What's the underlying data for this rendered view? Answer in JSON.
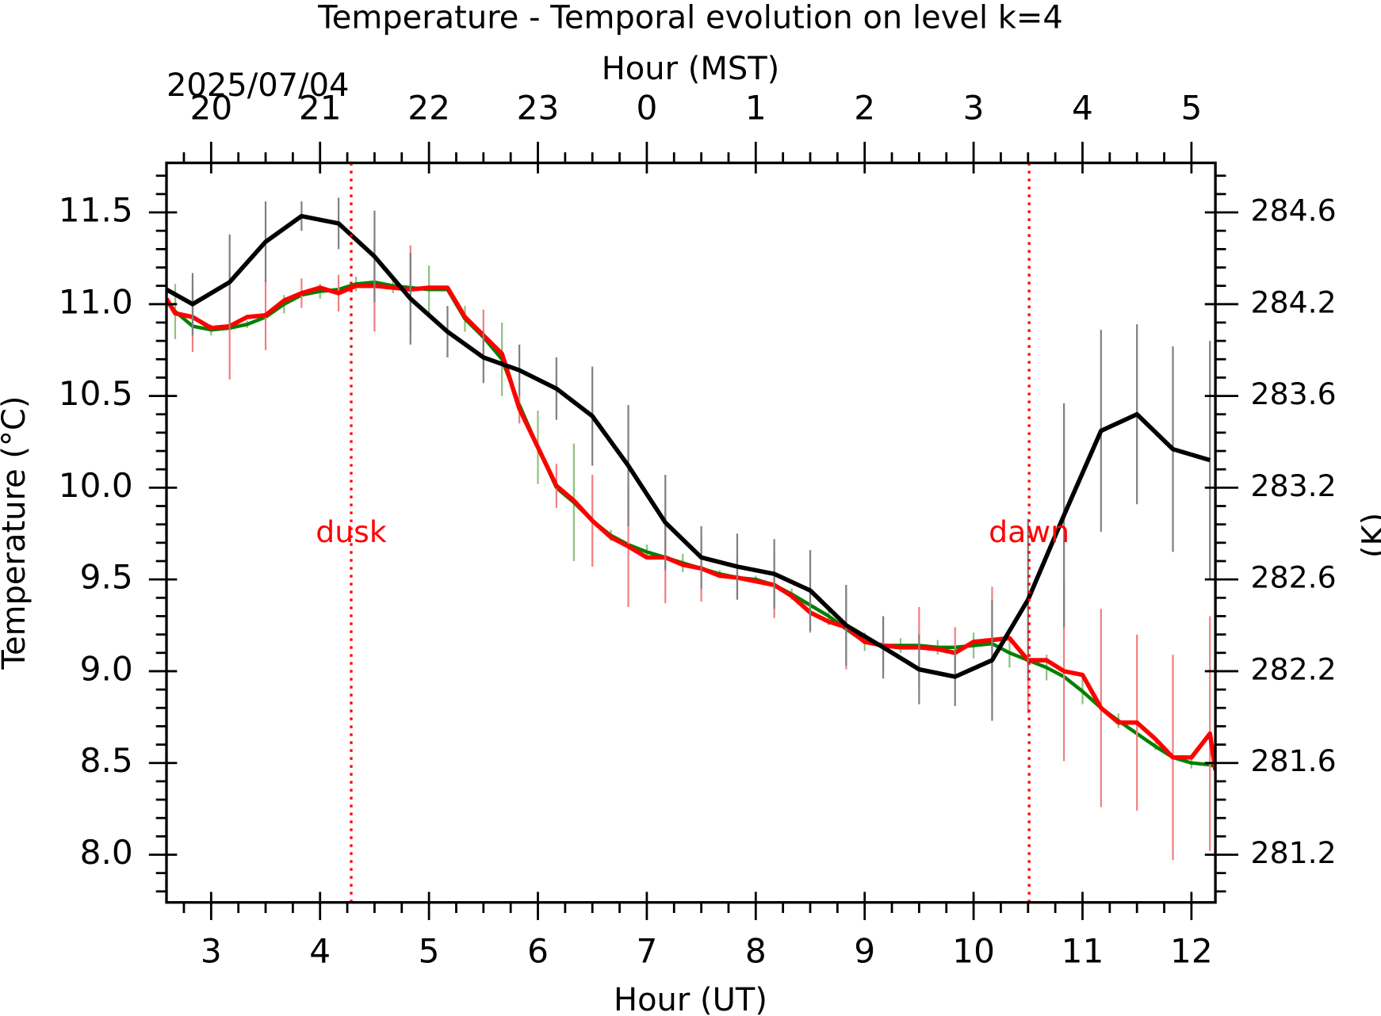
{
  "chart_data": {
    "type": "line",
    "title": "Temperature - Temporal evolution on level k=4",
    "xlabel": "Hour (UT)",
    "x2label": "Hour (MST)",
    "x2date": "2025/07/04",
    "ylabel": "Temperature (°C)",
    "y2label": "(K)",
    "xlim": [
      2.59,
      12.22
    ],
    "xticks": [
      3,
      4,
      5,
      6,
      7,
      8,
      9,
      10,
      11,
      12
    ],
    "xminorticks": [
      2.75,
      3.25,
      3.5,
      3.75,
      4.25,
      4.5,
      4.75,
      5.25,
      5.5,
      5.75,
      6.25,
      6.5,
      6.75,
      7.25,
      7.5,
      7.75,
      8.25,
      8.5,
      8.75,
      9.25,
      9.5,
      9.75,
      10.25,
      10.5,
      10.75,
      11.25,
      11.5,
      11.75
    ],
    "x2lim": [
      19.59,
      29.22
    ],
    "x2ticks": [
      20,
      21,
      22,
      23,
      {
        "value": 24,
        "label": "0"
      },
      {
        "value": 25,
        "label": "1"
      },
      {
        "value": 26,
        "label": "2"
      },
      {
        "value": 27,
        "label": "3"
      },
      {
        "value": 28,
        "label": "4"
      },
      {
        "value": 29,
        "label": "5"
      }
    ],
    "ylim": [
      7.74,
      11.77
    ],
    "yticks": [
      {
        "value": 8,
        "label": "8.0"
      },
      8.5,
      {
        "value": 9,
        "label": "9.0"
      },
      9.5,
      {
        "value": 10,
        "label": "10.0"
      },
      10.5,
      {
        "value": 11,
        "label": "11.0"
      },
      11.5
    ],
    "yminorticks": [
      7.8,
      7.9,
      8.1,
      8.2,
      8.3,
      8.4,
      8.6,
      8.7,
      8.8,
      8.9,
      9.1,
      9.2,
      9.3,
      9.4,
      9.6,
      9.7,
      9.8,
      9.9,
      10.1,
      10.2,
      10.3,
      10.4,
      10.6,
      10.7,
      10.8,
      10.9,
      11.1,
      11.2,
      11.3,
      11.4,
      11.6,
      11.7
    ],
    "y2lim": [
      280.89,
      284.92
    ],
    "y2ticks": [
      {
        "value": 281.15,
        "label": "281.2"
      },
      {
        "value": 281.65,
        "label": "281.6"
      },
      {
        "value": 282.15,
        "label": "282.2"
      },
      {
        "value": 282.65,
        "label": "282.6"
      },
      {
        "value": 283.15,
        "label": "283.2"
      },
      {
        "value": 283.65,
        "label": "283.6"
      },
      {
        "value": 284.15,
        "label": "284.2"
      },
      {
        "value": 284.65,
        "label": "284.6"
      }
    ],
    "annotations": [
      {
        "text": "dusk",
        "x": 4.286,
        "y": 9.75,
        "color": "#ff0000"
      },
      {
        "text": "dawn",
        "x": 10.51,
        "y": 9.75,
        "color": "#ff0000"
      }
    ],
    "series": [
      {
        "color": "#008000",
        "error_color": "#90c080",
        "width": 4,
        "x": [
          2.59,
          2.67,
          2.83,
          3.0,
          3.17,
          3.33,
          3.5,
          3.67,
          3.83,
          4.0,
          4.17,
          4.33,
          4.5,
          4.67,
          4.83,
          5.0,
          5.17,
          5.33,
          5.5,
          5.67,
          5.83,
          6.0,
          6.17,
          6.33,
          6.5,
          6.67,
          6.83,
          7.0,
          7.17,
          7.33,
          7.5,
          7.67,
          7.83,
          8.0,
          8.17,
          8.33,
          8.5,
          8.67,
          8.83,
          9.0,
          9.17,
          9.33,
          9.5,
          9.67,
          9.83,
          10.0,
          10.17,
          10.33,
          10.5,
          10.67,
          10.83,
          11.0,
          11.17,
          11.33,
          11.5,
          11.67,
          11.83,
          12.0,
          12.17,
          12.22
        ],
        "values": [
          11.02,
          10.96,
          10.88,
          10.86,
          10.87,
          10.89,
          10.93,
          11.0,
          11.05,
          11.07,
          11.08,
          11.11,
          11.12,
          11.1,
          11.09,
          11.08,
          11.08,
          10.92,
          10.82,
          10.7,
          10.45,
          10.22,
          10.0,
          9.92,
          9.82,
          9.74,
          9.69,
          9.65,
          9.62,
          9.59,
          9.56,
          9.53,
          9.51,
          9.5,
          9.47,
          9.42,
          9.36,
          9.3,
          9.23,
          9.16,
          9.14,
          9.14,
          9.14,
          9.13,
          9.13,
          9.14,
          9.15,
          9.1,
          9.06,
          9.02,
          8.97,
          8.89,
          8.8,
          8.73,
          8.66,
          8.59,
          8.53,
          8.5,
          8.49,
          8.48
        ],
        "errors": [
          null,
          0.15,
          null,
          0.03,
          null,
          0.02,
          null,
          0.05,
          null,
          0.04,
          null,
          0.04,
          null,
          0.04,
          null,
          0.13,
          null,
          0.07,
          null,
          0.2,
          null,
          0.2,
          null,
          0.32,
          null,
          0.03,
          null,
          0.04,
          null,
          0.05,
          null,
          0.02,
          null,
          0.02,
          null,
          0.03,
          null,
          0.05,
          null,
          0.05,
          null,
          0.04,
          null,
          0.04,
          null,
          0.07,
          null,
          0.08,
          null,
          0.07,
          null,
          0.07,
          null,
          0.04,
          null,
          0.02,
          null,
          0.03,
          null,
          null
        ]
      },
      {
        "color": "#ff0000",
        "error_color": "#f08080",
        "width": 5,
        "x": [
          2.59,
          2.67,
          2.83,
          3.0,
          3.17,
          3.33,
          3.5,
          3.67,
          3.83,
          4.0,
          4.17,
          4.33,
          4.5,
          4.67,
          4.83,
          5.0,
          5.17,
          5.33,
          5.5,
          5.67,
          5.83,
          6.0,
          6.17,
          6.33,
          6.5,
          6.67,
          6.83,
          7.0,
          7.17,
          7.33,
          7.5,
          7.67,
          7.83,
          8.0,
          8.17,
          8.33,
          8.5,
          8.67,
          8.83,
          9.0,
          9.17,
          9.33,
          9.5,
          9.67,
          9.83,
          10.0,
          10.17,
          10.33,
          10.5,
          10.67,
          10.83,
          11.0,
          11.17,
          11.33,
          11.5,
          11.67,
          11.83,
          12.0,
          12.17,
          12.22
        ],
        "values": [
          11.03,
          10.95,
          10.93,
          10.87,
          10.88,
          10.93,
          10.94,
          11.02,
          11.06,
          11.09,
          11.06,
          11.1,
          11.1,
          11.09,
          11.08,
          11.09,
          11.09,
          10.93,
          10.83,
          10.73,
          10.43,
          10.22,
          10.01,
          9.93,
          9.82,
          9.73,
          9.68,
          9.62,
          9.62,
          9.58,
          9.56,
          9.52,
          9.51,
          9.49,
          9.47,
          9.41,
          9.32,
          9.27,
          9.24,
          9.16,
          9.14,
          9.13,
          9.13,
          9.12,
          9.1,
          9.16,
          9.17,
          9.18,
          9.06,
          9.06,
          9.0,
          8.98,
          8.8,
          8.72,
          8.72,
          8.63,
          8.53,
          8.53,
          8.66,
          8.46
        ],
        "errors": [
          null,
          null,
          0.19,
          null,
          0.29,
          null,
          0.19,
          null,
          0.08,
          null,
          0.1,
          null,
          0.25,
          null,
          0.24,
          null,
          null,
          null,
          0.14,
          null,
          0.08,
          null,
          0.12,
          null,
          0.25,
          null,
          0.33,
          null,
          0.25,
          null,
          0.18,
          null,
          0.12,
          null,
          0.18,
          null,
          0.11,
          null,
          0.23,
          null,
          0.16,
          null,
          0.22,
          null,
          0.14,
          null,
          0.29,
          null,
          0.29,
          null,
          0.49,
          null,
          0.54,
          null,
          0.48,
          null,
          0.56,
          null,
          0.64,
          null
        ]
      },
      {
        "color": "#000000",
        "error_color": "#808080",
        "width": 5,
        "x": [
          2.59,
          2.83,
          3.17,
          3.5,
          3.83,
          4.17,
          4.5,
          4.83,
          5.17,
          5.5,
          5.83,
          6.17,
          6.5,
          6.83,
          7.17,
          7.5,
          7.83,
          8.17,
          8.5,
          8.83,
          9.17,
          9.5,
          9.83,
          10.17,
          10.5,
          10.83,
          11.17,
          11.5,
          11.83,
          12.17
        ],
        "values": [
          11.08,
          11.0,
          11.12,
          11.34,
          11.48,
          11.44,
          11.26,
          11.03,
          10.85,
          10.71,
          10.64,
          10.54,
          10.39,
          10.12,
          9.81,
          9.62,
          9.57,
          9.53,
          9.44,
          9.25,
          9.13,
          9.01,
          8.97,
          9.06,
          9.39,
          9.85,
          10.31,
          10.4,
          10.21,
          10.15
        ],
        "errors": [
          null,
          0.17,
          0.26,
          0.22,
          0.08,
          0.14,
          0.25,
          0.25,
          0.14,
          0.14,
          0.14,
          0.17,
          0.27,
          0.33,
          0.26,
          0.17,
          0.18,
          0.19,
          0.22,
          0.22,
          0.17,
          0.19,
          0.16,
          0.33,
          0.44,
          0.61,
          0.55,
          0.49,
          0.56,
          0.65
        ]
      }
    ]
  }
}
